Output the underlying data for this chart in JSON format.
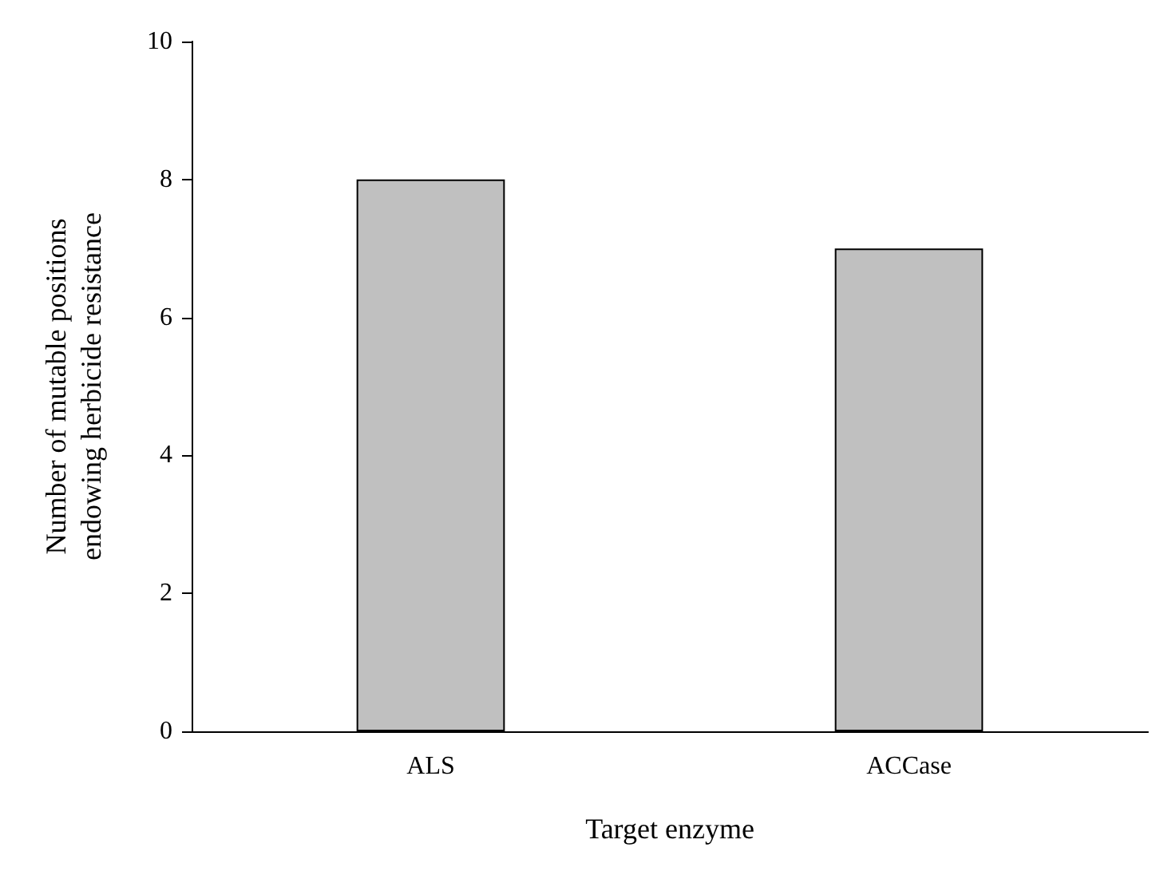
{
  "chart_data": {
    "type": "bar",
    "categories": [
      "ALS",
      "ACCase"
    ],
    "values": [
      8,
      7
    ],
    "color": "#c0c0c0",
    "xlabel": "Target enzyme",
    "ylabel": "Number of mutable positions\nendowing herbicide resistance",
    "ylim": [
      0,
      10
    ],
    "yticks": [
      0,
      2,
      4,
      6,
      8,
      10
    ],
    "grid": false
  }
}
